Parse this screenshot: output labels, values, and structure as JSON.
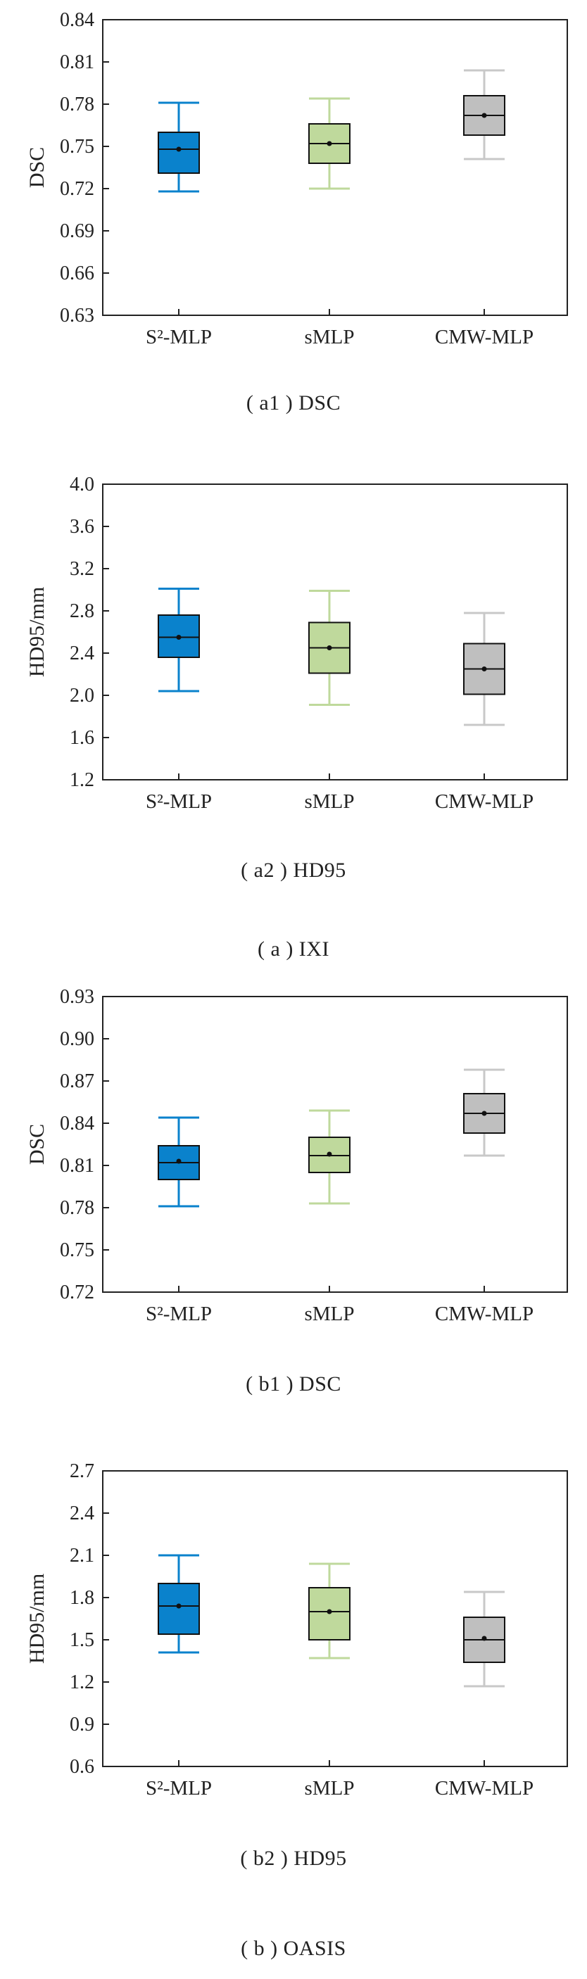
{
  "colors": {
    "s2mlp": "#0A82CC",
    "smlp": "#BFD99C",
    "cmwmlp": "#BFBFBF",
    "s2mlp_whisker": "#0A82CC",
    "smlp_whisker": "#BFD99C",
    "cmwmlp_whisker": "#C8C8C8"
  },
  "captions": {
    "a1": "( a1 ) DSC",
    "a2": "( a2 ) HD95",
    "a": "( a ) IXI",
    "b1": "( b1 ) DSC",
    "b2": "( b2 ) HD95",
    "b": "( b ) OASIS"
  },
  "chart_data": [
    {
      "id": "a1",
      "type": "box",
      "ylabel": "DSC",
      "ylim": [
        0.63,
        0.84
      ],
      "yticks": [
        "0.63",
        "0.66",
        "0.69",
        "0.72",
        "0.75",
        "0.78",
        "0.81",
        "0.84"
      ],
      "categories": [
        "S²-MLP",
        "sMLP",
        "CMW-MLP"
      ],
      "boxes": [
        {
          "min": 0.718,
          "q1": 0.731,
          "median": 0.748,
          "q3": 0.76,
          "max": 0.781,
          "mean": 0.748
        },
        {
          "min": 0.72,
          "q1": 0.738,
          "median": 0.752,
          "q3": 0.766,
          "max": 0.784,
          "mean": 0.752
        },
        {
          "min": 0.741,
          "q1": 0.758,
          "median": 0.772,
          "q3": 0.786,
          "max": 0.804,
          "mean": 0.772
        }
      ]
    },
    {
      "id": "a2",
      "type": "box",
      "ylabel": "HD95/mm",
      "ylim": [
        1.2,
        4.0
      ],
      "yticks": [
        "1.2",
        "1.6",
        "2.0",
        "2.4",
        "2.8",
        "3.2",
        "3.6",
        "4.0"
      ],
      "categories": [
        "S²-MLP",
        "sMLP",
        "CMW-MLP"
      ],
      "boxes": [
        {
          "min": 2.04,
          "q1": 2.36,
          "median": 2.55,
          "q3": 2.76,
          "max": 3.01,
          "mean": 2.55
        },
        {
          "min": 1.91,
          "q1": 2.21,
          "median": 2.45,
          "q3": 2.69,
          "max": 2.99,
          "mean": 2.45
        },
        {
          "min": 1.72,
          "q1": 2.01,
          "median": 2.25,
          "q3": 2.49,
          "max": 2.78,
          "mean": 2.25
        }
      ]
    },
    {
      "id": "b1",
      "type": "box",
      "ylabel": "DSC",
      "ylim": [
        0.72,
        0.93
      ],
      "yticks": [
        "0.72",
        "0.75",
        "0.78",
        "0.81",
        "0.84",
        "0.87",
        "0.90",
        "0.93"
      ],
      "categories": [
        "S²-MLP",
        "sMLP",
        "CMW-MLP"
      ],
      "boxes": [
        {
          "min": 0.781,
          "q1": 0.8,
          "median": 0.812,
          "q3": 0.824,
          "max": 0.844,
          "mean": 0.813
        },
        {
          "min": 0.783,
          "q1": 0.805,
          "median": 0.817,
          "q3": 0.83,
          "max": 0.849,
          "mean": 0.818
        },
        {
          "min": 0.817,
          "q1": 0.833,
          "median": 0.847,
          "q3": 0.861,
          "max": 0.878,
          "mean": 0.847
        }
      ]
    },
    {
      "id": "b2",
      "type": "box",
      "ylabel": "HD95/mm",
      "ylim": [
        0.6,
        2.7
      ],
      "yticks": [
        "0.6",
        "0.9",
        "1.2",
        "1.5",
        "1.8",
        "2.1",
        "2.4",
        "2.7"
      ],
      "categories": [
        "S²-MLP",
        "sMLP",
        "CMW-MLP"
      ],
      "boxes": [
        {
          "min": 1.41,
          "q1": 1.54,
          "median": 1.74,
          "q3": 1.9,
          "max": 2.1,
          "mean": 1.74
        },
        {
          "min": 1.37,
          "q1": 1.5,
          "median": 1.7,
          "q3": 1.87,
          "max": 2.04,
          "mean": 1.7
        },
        {
          "min": 1.17,
          "q1": 1.34,
          "median": 1.5,
          "q3": 1.66,
          "max": 1.84,
          "mean": 1.51
        }
      ]
    }
  ]
}
